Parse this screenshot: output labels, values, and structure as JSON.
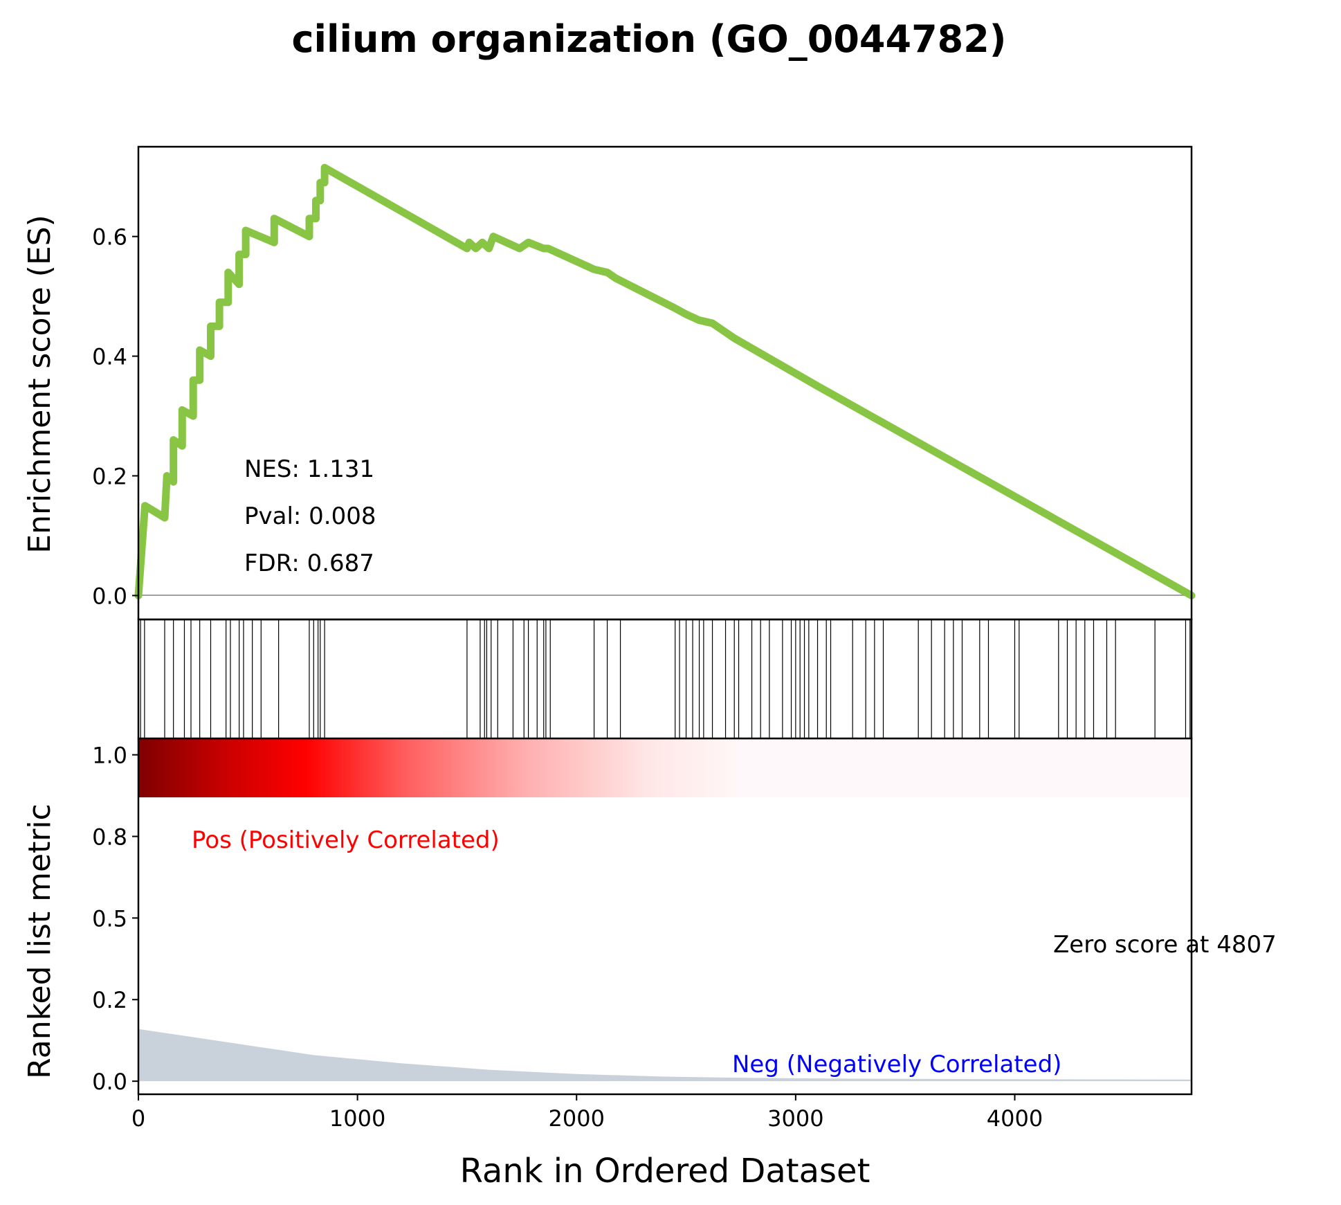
{
  "chart_data": {
    "type": "line",
    "title": "cilium organization (GO_0044782)",
    "xlabel": "Rank in Ordered Dataset",
    "xlim": [
      0,
      4807
    ],
    "x_ticks": [
      "0",
      "1000",
      "2000",
      "3000",
      "4000"
    ],
    "es_panel": {
      "ylabel": "Enrichment score (ES)",
      "ylim": [
        -0.04,
        0.75
      ],
      "y_ticks": [
        "0.0",
        "0.2",
        "0.4",
        "0.6"
      ],
      "line_color": "#88c544",
      "stats": [
        "NES: 1.131",
        "Pval: 0.008",
        "FDR: 0.687"
      ],
      "es_points": [
        [
          0,
          0
        ],
        [
          30,
          0.15
        ],
        [
          120,
          0.13
        ],
        [
          130,
          0.2
        ],
        [
          160,
          0.19
        ],
        [
          160,
          0.26
        ],
        [
          200,
          0.25
        ],
        [
          200,
          0.31
        ],
        [
          250,
          0.3
        ],
        [
          250,
          0.36
        ],
        [
          280,
          0.36
        ],
        [
          280,
          0.41
        ],
        [
          330,
          0.4
        ],
        [
          330,
          0.45
        ],
        [
          370,
          0.45
        ],
        [
          370,
          0.49
        ],
        [
          410,
          0.49
        ],
        [
          410,
          0.54
        ],
        [
          460,
          0.52
        ],
        [
          460,
          0.57
        ],
        [
          490,
          0.57
        ],
        [
          490,
          0.61
        ],
        [
          620,
          0.59
        ],
        [
          620,
          0.63
        ],
        [
          780,
          0.6
        ],
        [
          780,
          0.63
        ],
        [
          810,
          0.63
        ],
        [
          810,
          0.66
        ],
        [
          830,
          0.66
        ],
        [
          830,
          0.69
        ],
        [
          850,
          0.69
        ],
        [
          850,
          0.715
        ],
        [
          1500,
          0.58
        ],
        [
          1510,
          0.59
        ],
        [
          1540,
          0.58
        ],
        [
          1570,
          0.59
        ],
        [
          1600,
          0.58
        ],
        [
          1620,
          0.6
        ],
        [
          1740,
          0.58
        ],
        [
          1780,
          0.59
        ],
        [
          1850,
          0.58
        ],
        [
          1870,
          0.58
        ],
        [
          2080,
          0.545
        ],
        [
          2140,
          0.54
        ],
        [
          2180,
          0.53
        ],
        [
          2450,
          0.48
        ],
        [
          2500,
          0.47
        ],
        [
          2560,
          0.46
        ],
        [
          2620,
          0.455
        ],
        [
          2680,
          0.44
        ],
        [
          2720,
          0.43
        ],
        [
          3100,
          0.35
        ],
        [
          4807,
          0
        ]
      ]
    },
    "hits": [
      10,
      28,
      120,
      160,
      210,
      240,
      280,
      330,
      400,
      420,
      460,
      480,
      520,
      560,
      640,
      780,
      800,
      820,
      830,
      850,
      1500,
      1560,
      1580,
      1590,
      1610,
      1640,
      1710,
      1760,
      1780,
      1820,
      1850,
      1860,
      1880,
      2080,
      2140,
      2200,
      2450,
      2470,
      2500,
      2530,
      2560,
      2580,
      2620,
      2680,
      2720,
      2740,
      2800,
      2840,
      2880,
      2940,
      2980,
      3000,
      3020,
      3040,
      3060,
      3100,
      3140,
      3160,
      3260,
      3320,
      3360,
      3400,
      3560,
      3620,
      3680,
      3720,
      3760,
      3840,
      3880,
      4000,
      4020,
      4200,
      4240,
      4280,
      4320,
      4360,
      4420,
      4460,
      4640,
      4780,
      4800
    ],
    "metric_panel": {
      "ylabel": "Ranked list metric",
      "ylim": [
        -0.04,
        1.05
      ],
      "y_ticks": [
        "0.0",
        "0.2",
        "0.5",
        "0.8",
        "1.0"
      ],
      "fill_color": "#c9d2db",
      "metric_curve": [
        [
          0,
          0.16
        ],
        [
          200,
          0.14
        ],
        [
          500,
          0.11
        ],
        [
          800,
          0.08
        ],
        [
          1200,
          0.055
        ],
        [
          1600,
          0.035
        ],
        [
          2000,
          0.022
        ],
        [
          2400,
          0.014
        ],
        [
          2800,
          0.01
        ],
        [
          3200,
          0.008
        ],
        [
          4000,
          0.006
        ],
        [
          4807,
          0.005
        ]
      ],
      "pos_label": "Pos (Positively Correlated)",
      "neg_label": "Neg (Negatively Correlated)",
      "zero_label": "Zero score at 4807",
      "pos_color": "#ff0000",
      "neg_color": "#0000ff"
    }
  }
}
